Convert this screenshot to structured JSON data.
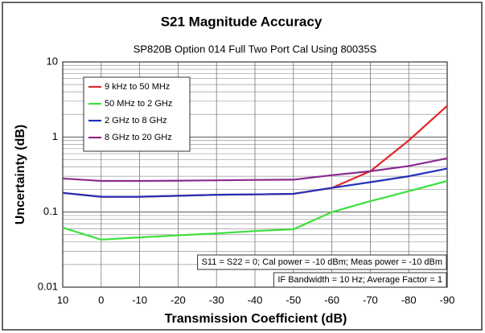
{
  "chart_data": {
    "type": "line",
    "title": "S21 Magnitude Accuracy",
    "subtitle": "SP820B Option 014 Full Two Port Cal Using 80035S",
    "x_label": "Transmission Coefficient (dB)",
    "y_label": "Uncertainty (dB)",
    "x": [
      10,
      0,
      -10,
      -20,
      -30,
      -40,
      -50,
      -60,
      -70,
      -80,
      -90
    ],
    "series": [
      {
        "name": "9 kHz to 50 MHz",
        "color": "#e02828",
        "values": [
          0.18,
          0.16,
          0.16,
          0.165,
          0.17,
          0.172,
          0.175,
          0.21,
          0.35,
          0.9,
          2.6
        ]
      },
      {
        "name": "50 MHz to 2 GHz",
        "color": "#3ce03c",
        "values": [
          0.062,
          0.043,
          0.046,
          0.049,
          0.052,
          0.056,
          0.059,
          0.1,
          0.14,
          0.19,
          0.26
        ]
      },
      {
        "name": "2 GHz to 8 GHz",
        "color": "#2530b8",
        "values": [
          0.18,
          0.16,
          0.16,
          0.165,
          0.17,
          0.172,
          0.175,
          0.21,
          0.25,
          0.3,
          0.38
        ]
      },
      {
        "name": "8 GHz to 20 GHz",
        "color": "#8a2a8e",
        "values": [
          0.28,
          0.26,
          0.26,
          0.262,
          0.265,
          0.268,
          0.27,
          0.31,
          0.35,
          0.41,
          0.52
        ]
      }
    ],
    "xlim": [
      10,
      -90
    ],
    "xticks": [
      10,
      0,
      -10,
      -20,
      -30,
      -40,
      -50,
      -60,
      -70,
      -80,
      -90
    ],
    "ylim": [
      0.01,
      10
    ],
    "yticks": [
      0.01,
      0.1,
      1,
      10
    ],
    "log_y": true,
    "grid": true,
    "legend": "upper left",
    "annotations": [
      "S11 = S22 = 0; Cal power = -10 dBm; Meas power = -10 dBm",
      "IF Bandwidth = 10 Hz; Average Factor = 1"
    ]
  }
}
